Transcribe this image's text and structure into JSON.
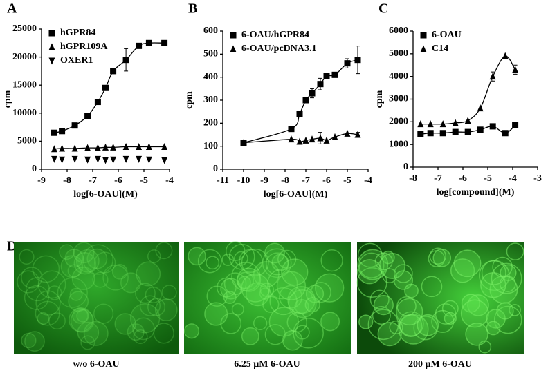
{
  "chart_data": [
    {
      "type": "scatter",
      "panel": "A",
      "xlabel": "log[6-OAU](M)",
      "ylabel": "cpm",
      "xlim": [
        -9,
        -4
      ],
      "xticks": [
        -9,
        -8,
        -7,
        -6,
        -5,
        -4
      ],
      "ylim": [
        0,
        25000
      ],
      "yticks": [
        0,
        5000,
        10000,
        15000,
        20000,
        25000
      ],
      "x": [
        -8.5,
        -8.2,
        -7.7,
        -7.2,
        -6.8,
        -6.5,
        -6.2,
        -5.7,
        -5.2,
        -4.8,
        -4.2
      ],
      "series": [
        {
          "name": "hGPR84",
          "color": "#000",
          "marker": "square",
          "fit_line": true,
          "values": [
            6500,
            6800,
            7800,
            9500,
            12000,
            14500,
            17500,
            19500,
            22000,
            22500,
            22500
          ],
          "errors": [
            null,
            null,
            null,
            null,
            null,
            null,
            null,
            2000,
            null,
            null,
            null
          ]
        },
        {
          "name": "hGPR109A",
          "color": "#000",
          "marker": "triangle-up",
          "fit_line": true,
          "values": [
            3600,
            3700,
            3700,
            3800,
            3800,
            3900,
            3900,
            4000,
            4000,
            4000,
            4000
          ],
          "errors": [
            null,
            null,
            null,
            null,
            null,
            null,
            null,
            null,
            null,
            null,
            null
          ]
        },
        {
          "name": "OXER1",
          "color": "#000",
          "marker": "triangle-down",
          "fit_line": false,
          "values": [
            1800,
            1700,
            1800,
            1700,
            1800,
            1600,
            1700,
            1800,
            1800,
            1700,
            1600
          ],
          "errors": [
            null,
            null,
            null,
            null,
            null,
            null,
            null,
            null,
            null,
            null,
            null
          ]
        }
      ]
    },
    {
      "type": "scatter",
      "panel": "B",
      "xlabel": "log[6-OAU](M)",
      "ylabel": "cpm",
      "xlim": [
        -11,
        -4
      ],
      "xticks": [
        -11,
        -10,
        -9,
        -8,
        -7,
        -6,
        -5,
        -4
      ],
      "ylim": [
        0,
        600
      ],
      "yticks": [
        0,
        100,
        200,
        300,
        400,
        500,
        600
      ],
      "x": [
        -10,
        -7.7,
        -7.3,
        -7,
        -6.7,
        -6.3,
        -6,
        -5.6,
        -5,
        -4.5
      ],
      "series": [
        {
          "name": "6-OAU/hGPR84",
          "color": "#000",
          "marker": "square",
          "fit_line": true,
          "values": [
            115,
            175,
            240,
            300,
            330,
            370,
            405,
            410,
            460,
            475
          ],
          "errors": [
            null,
            null,
            10,
            null,
            20,
            25,
            null,
            null,
            20,
            60
          ]
        },
        {
          "name": "6-OAU/pcDNA3.1",
          "color": "#000",
          "marker": "triangle-up",
          "fit_line": true,
          "values": [
            115,
            130,
            120,
            125,
            130,
            135,
            125,
            140,
            155,
            150
          ],
          "errors": [
            null,
            null,
            null,
            null,
            null,
            25,
            null,
            null,
            null,
            10
          ]
        }
      ]
    },
    {
      "type": "scatter",
      "panel": "C",
      "xlabel": "log[compound](M)",
      "ylabel": "cpm",
      "xlim": [
        -8,
        -3
      ],
      "xticks": [
        -8,
        -7,
        -6,
        -5,
        -4,
        -3
      ],
      "ylim": [
        0,
        6000
      ],
      "yticks": [
        0,
        1000,
        2000,
        3000,
        4000,
        5000,
        6000
      ],
      "x": [
        -7.7,
        -7.3,
        -6.8,
        -6.3,
        -5.8,
        -5.3,
        -4.8,
        -4.3,
        -3.9
      ],
      "series": [
        {
          "name": "6-OAU",
          "color": "#000",
          "marker": "square",
          "fit_line": true,
          "values": [
            1450,
            1500,
            1500,
            1550,
            1550,
            1650,
            1800,
            1500,
            1850
          ],
          "errors": [
            null,
            null,
            null,
            null,
            null,
            null,
            null,
            null,
            null
          ]
        },
        {
          "name": "C14",
          "color": "#000",
          "marker": "triangle-up",
          "fit_line": true,
          "values": [
            1900,
            1900,
            1900,
            1950,
            2050,
            2600,
            4000,
            4900,
            4300
          ],
          "errors": [
            null,
            null,
            null,
            null,
            null,
            null,
            200,
            null,
            200
          ]
        }
      ]
    }
  ],
  "images": {
    "panel": "D",
    "captions": [
      "w/o 6-OAU",
      "6.25 µM 6-OAU",
      "200 µM 6-OAU"
    ]
  }
}
